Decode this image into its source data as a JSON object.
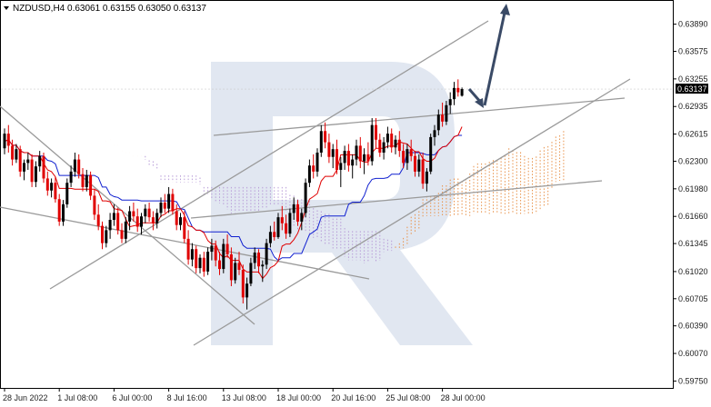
{
  "header": {
    "symbol_line": "NZDUSD,H4  0.63061 0.63155 0.63050 0.63137"
  },
  "chart_data": {
    "type": "candlestick",
    "title": "NZDUSD,H4",
    "ohlc_last": {
      "open": 0.63061,
      "high": 0.63155,
      "low": 0.6305,
      "close": 0.63137
    },
    "current_price": 0.63137,
    "current_price_label": "0.63137",
    "ylim": [
      0.5967,
      0.6416
    ],
    "y_ticks": [
      "0.63890",
      "0.63575",
      "0.63255",
      "0.62935",
      "0.62615",
      "0.62300",
      "0.61980",
      "0.61660",
      "0.61345",
      "0.61020",
      "0.60705",
      "0.60390",
      "0.60070",
      "0.59750"
    ],
    "x_tick_labels": [
      "28 Jun 2022",
      "1 Jul 08:00",
      "6 Jul 00:00",
      "8 Jul 16:00",
      "13 Jul 08:00",
      "18 Jul 00:00",
      "20 Jul 16:00",
      "25 Jul 08:00",
      "28 Jul 00:00"
    ],
    "x_tick_bar_index": [
      0,
      14,
      28,
      42,
      56,
      70,
      84,
      98,
      112
    ],
    "candles": [
      [
        0.6245,
        0.6268,
        0.6238,
        0.6262
      ],
      [
        0.6262,
        0.6272,
        0.624,
        0.6248
      ],
      [
        0.6248,
        0.6255,
        0.6225,
        0.6232
      ],
      [
        0.6232,
        0.625,
        0.6228,
        0.6244
      ],
      [
        0.6244,
        0.6248,
        0.6212,
        0.6218
      ],
      [
        0.6218,
        0.6232,
        0.6208,
        0.6228
      ],
      [
        0.6228,
        0.624,
        0.622,
        0.6232
      ],
      [
        0.6232,
        0.6238,
        0.62,
        0.6206
      ],
      [
        0.6206,
        0.623,
        0.62,
        0.6224
      ],
      [
        0.6224,
        0.6242,
        0.6218,
        0.6236
      ],
      [
        0.6236,
        0.624,
        0.6205,
        0.621
      ],
      [
        0.621,
        0.6218,
        0.619,
        0.6196
      ],
      [
        0.6196,
        0.621,
        0.6188,
        0.6205
      ],
      [
        0.6205,
        0.6212,
        0.6182,
        0.6186
      ],
      [
        0.6186,
        0.6192,
        0.6155,
        0.616
      ],
      [
        0.616,
        0.6185,
        0.6155,
        0.618
      ],
      [
        0.618,
        0.621,
        0.6176,
        0.6205
      ],
      [
        0.6205,
        0.6225,
        0.62,
        0.6218
      ],
      [
        0.6218,
        0.624,
        0.6212,
        0.6232
      ],
      [
        0.6232,
        0.6238,
        0.621,
        0.6215
      ],
      [
        0.6215,
        0.6222,
        0.6195,
        0.62
      ],
      [
        0.62,
        0.622,
        0.6195,
        0.6214
      ],
      [
        0.6214,
        0.6218,
        0.6185,
        0.619
      ],
      [
        0.619,
        0.6198,
        0.6162,
        0.6168
      ],
      [
        0.6168,
        0.618,
        0.615,
        0.6155
      ],
      [
        0.6155,
        0.616,
        0.6128,
        0.6135
      ],
      [
        0.6135,
        0.6155,
        0.613,
        0.615
      ],
      [
        0.615,
        0.617,
        0.614,
        0.6162
      ],
      [
        0.6162,
        0.618,
        0.6155,
        0.617
      ],
      [
        0.617,
        0.6176,
        0.6145,
        0.615
      ],
      [
        0.615,
        0.6158,
        0.6135,
        0.614
      ],
      [
        0.614,
        0.6165,
        0.6135,
        0.616
      ],
      [
        0.616,
        0.6178,
        0.615,
        0.6172
      ],
      [
        0.6172,
        0.6182,
        0.616,
        0.6166
      ],
      [
        0.6166,
        0.6175,
        0.6148,
        0.6154
      ],
      [
        0.6154,
        0.617,
        0.6145,
        0.6166
      ],
      [
        0.6166,
        0.618,
        0.6158,
        0.6175
      ],
      [
        0.6175,
        0.6182,
        0.616,
        0.6165
      ],
      [
        0.6165,
        0.6172,
        0.615,
        0.6158
      ],
      [
        0.6158,
        0.6175,
        0.6152,
        0.617
      ],
      [
        0.617,
        0.6188,
        0.6165,
        0.6182
      ],
      [
        0.6182,
        0.6192,
        0.617,
        0.6175
      ],
      [
        0.6175,
        0.62,
        0.617,
        0.6192
      ],
      [
        0.6192,
        0.6198,
        0.6168,
        0.6172
      ],
      [
        0.6172,
        0.618,
        0.615,
        0.6156
      ],
      [
        0.6156,
        0.617,
        0.615,
        0.6165
      ],
      [
        0.6165,
        0.6172,
        0.6135,
        0.614
      ],
      [
        0.614,
        0.615,
        0.611,
        0.6116
      ],
      [
        0.6116,
        0.6135,
        0.6108,
        0.6128
      ],
      [
        0.6128,
        0.6132,
        0.61,
        0.6106
      ],
      [
        0.6106,
        0.6122,
        0.61,
        0.6118
      ],
      [
        0.6118,
        0.6125,
        0.6096,
        0.6102
      ],
      [
        0.6102,
        0.613,
        0.6098,
        0.6125
      ],
      [
        0.6125,
        0.614,
        0.6115,
        0.6132
      ],
      [
        0.6132,
        0.6138,
        0.6108,
        0.6115
      ],
      [
        0.6115,
        0.6125,
        0.6098,
        0.6105
      ],
      [
        0.6105,
        0.614,
        0.61,
        0.6134
      ],
      [
        0.6134,
        0.6145,
        0.6118,
        0.6122
      ],
      [
        0.6122,
        0.613,
        0.6085,
        0.6092
      ],
      [
        0.6092,
        0.6118,
        0.6088,
        0.6112
      ],
      [
        0.6112,
        0.6125,
        0.6098,
        0.6104
      ],
      [
        0.6104,
        0.611,
        0.6065,
        0.6072
      ],
      [
        0.6072,
        0.6095,
        0.6058,
        0.6088
      ],
      [
        0.6088,
        0.6118,
        0.6085,
        0.6112
      ],
      [
        0.6112,
        0.613,
        0.6105,
        0.6124
      ],
      [
        0.6124,
        0.6128,
        0.61,
        0.6108
      ],
      [
        0.6108,
        0.6115,
        0.609,
        0.611
      ],
      [
        0.611,
        0.614,
        0.6105,
        0.6135
      ],
      [
        0.6135,
        0.6155,
        0.613,
        0.6148
      ],
      [
        0.6148,
        0.616,
        0.6138,
        0.6142
      ],
      [
        0.6142,
        0.617,
        0.614,
        0.6165
      ],
      [
        0.6165,
        0.6178,
        0.615,
        0.6158
      ],
      [
        0.6158,
        0.6168,
        0.614,
        0.6146
      ],
      [
        0.6146,
        0.6175,
        0.6142,
        0.617
      ],
      [
        0.617,
        0.6188,
        0.6162,
        0.618
      ],
      [
        0.618,
        0.6185,
        0.6155,
        0.616
      ],
      [
        0.616,
        0.6175,
        0.615,
        0.617
      ],
      [
        0.617,
        0.621,
        0.6165,
        0.6205
      ],
      [
        0.6205,
        0.6232,
        0.62,
        0.6225
      ],
      [
        0.6225,
        0.6238,
        0.621,
        0.6218
      ],
      [
        0.6218,
        0.6245,
        0.6212,
        0.624
      ],
      [
        0.624,
        0.6272,
        0.6235,
        0.6265
      ],
      [
        0.6265,
        0.6275,
        0.6245,
        0.6252
      ],
      [
        0.6252,
        0.6262,
        0.6228,
        0.6235
      ],
      [
        0.6235,
        0.625,
        0.6222,
        0.6244
      ],
      [
        0.6244,
        0.6255,
        0.6215,
        0.622
      ],
      [
        0.622,
        0.6235,
        0.62,
        0.6228
      ],
      [
        0.6228,
        0.6248,
        0.622,
        0.6242
      ],
      [
        0.6242,
        0.625,
        0.6218,
        0.6225
      ],
      [
        0.6225,
        0.6238,
        0.621,
        0.6232
      ],
      [
        0.6232,
        0.6255,
        0.6225,
        0.6248
      ],
      [
        0.6248,
        0.6258,
        0.6222,
        0.623
      ],
      [
        0.623,
        0.6245,
        0.6215,
        0.6238
      ],
      [
        0.6238,
        0.6252,
        0.6225,
        0.623
      ],
      [
        0.623,
        0.628,
        0.6225,
        0.6272
      ],
      [
        0.6272,
        0.628,
        0.6245,
        0.6255
      ],
      [
        0.6255,
        0.6262,
        0.6235,
        0.624
      ],
      [
        0.624,
        0.6258,
        0.6232,
        0.6252
      ],
      [
        0.6252,
        0.627,
        0.6245,
        0.6262
      ],
      [
        0.6262,
        0.6268,
        0.624,
        0.6246
      ],
      [
        0.6246,
        0.626,
        0.6238,
        0.6255
      ],
      [
        0.6255,
        0.6265,
        0.6235,
        0.6242
      ],
      [
        0.6242,
        0.625,
        0.6222,
        0.6228
      ],
      [
        0.6228,
        0.625,
        0.622,
        0.6244
      ],
      [
        0.6244,
        0.6255,
        0.623,
        0.6236
      ],
      [
        0.6236,
        0.6242,
        0.6212,
        0.6218
      ],
      [
        0.6218,
        0.6238,
        0.6212,
        0.6232
      ],
      [
        0.6232,
        0.624,
        0.6198,
        0.6204
      ],
      [
        0.6204,
        0.6222,
        0.6195,
        0.6218
      ],
      [
        0.6218,
        0.6262,
        0.6215,
        0.6258
      ],
      [
        0.6258,
        0.6272,
        0.6248,
        0.6266
      ],
      [
        0.6266,
        0.629,
        0.626,
        0.6284
      ],
      [
        0.6284,
        0.6298,
        0.627,
        0.6276
      ],
      [
        0.6276,
        0.63,
        0.6272,
        0.6295
      ],
      [
        0.6295,
        0.631,
        0.6285,
        0.6302
      ],
      [
        0.6302,
        0.6322,
        0.6295,
        0.6315
      ],
      [
        0.6315,
        0.6325,
        0.6305,
        0.631
      ],
      [
        0.6306,
        0.63155,
        0.6305,
        0.63137
      ]
    ]
  },
  "colors": {
    "bull": "#000000",
    "bear": "#e00000",
    "tenkan": "#e00000",
    "kijun": "#1020d0",
    "cloud_bull": "#e8924a",
    "cloud_bear": "#b89cd8",
    "trend_lines": "#9a9a9a",
    "arrow": "#3a4a66",
    "price_label_bg": "#000000",
    "watermark": "#c8d4e6"
  }
}
